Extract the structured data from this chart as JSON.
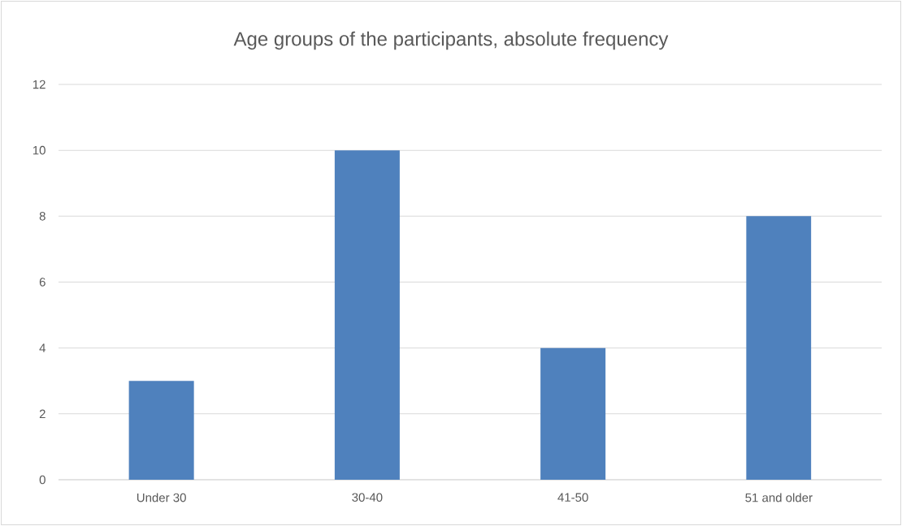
{
  "chart_data": {
    "type": "bar",
    "title": "Age groups of the participants, absolute frequency",
    "categories": [
      "Under 30",
      "30-40",
      "41-50",
      "51 and older"
    ],
    "values": [
      3,
      10,
      4,
      8
    ],
    "color": "#4f81bd",
    "ylim": [
      0,
      12
    ],
    "yticks": [
      0,
      2,
      4,
      6,
      8,
      10,
      12
    ],
    "grid": "y"
  }
}
